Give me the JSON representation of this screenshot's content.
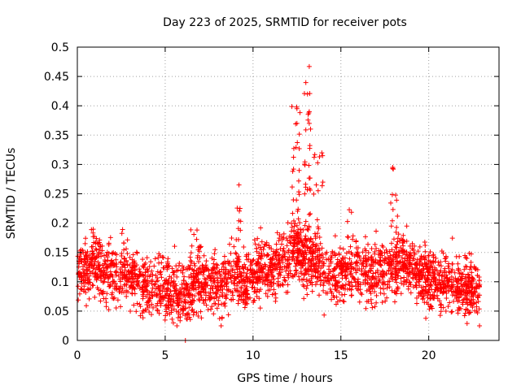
{
  "chart_data": {
    "type": "scatter",
    "title": "Day 223 of 2025, SRMTID for receiver pots",
    "xlabel": "GPS time / hours",
    "ylabel": "SRMTID / TECUs",
    "xlim": [
      0,
      24
    ],
    "ylim": [
      0,
      0.5
    ],
    "x_ticks": [
      0,
      5,
      10,
      15,
      20
    ],
    "y_ticks": [
      0,
      0.05,
      0.1,
      0.15,
      0.2,
      0.25,
      0.3,
      0.35,
      0.4,
      0.45,
      0.5
    ],
    "x_tick_labels": [
      "0",
      "5",
      "10",
      "15",
      "20"
    ],
    "y_tick_labels": [
      "0",
      "0.05",
      "0.1",
      "0.15",
      "0.2",
      "0.25",
      "0.3",
      "0.35",
      "0.4",
      "0.45",
      "0.5"
    ],
    "grid": true,
    "marker": "+",
    "color": "#ff0000",
    "baseline": [
      [
        0.0,
        0.12
      ],
      [
        0.5,
        0.12
      ],
      [
        1.0,
        0.13
      ],
      [
        1.5,
        0.12
      ],
      [
        2.0,
        0.11
      ],
      [
        2.5,
        0.1
      ],
      [
        3.0,
        0.11
      ],
      [
        3.5,
        0.1
      ],
      [
        4.0,
        0.09
      ],
      [
        4.5,
        0.09
      ],
      [
        5.0,
        0.09
      ],
      [
        5.5,
        0.08
      ],
      [
        6.0,
        0.08
      ],
      [
        6.5,
        0.09
      ],
      [
        7.0,
        0.1
      ],
      [
        7.5,
        0.1
      ],
      [
        8.0,
        0.09
      ],
      [
        8.5,
        0.1
      ],
      [
        9.0,
        0.11
      ],
      [
        9.5,
        0.1
      ],
      [
        10.0,
        0.11
      ],
      [
        10.5,
        0.12
      ],
      [
        11.0,
        0.12
      ],
      [
        11.5,
        0.13
      ],
      [
        12.0,
        0.14
      ],
      [
        12.5,
        0.15
      ],
      [
        13.0,
        0.14
      ],
      [
        13.5,
        0.13
      ],
      [
        14.0,
        0.12
      ],
      [
        14.5,
        0.11
      ],
      [
        15.0,
        0.11
      ],
      [
        15.5,
        0.12
      ],
      [
        16.0,
        0.12
      ],
      [
        16.5,
        0.12
      ],
      [
        17.0,
        0.11
      ],
      [
        17.5,
        0.12
      ],
      [
        18.0,
        0.13
      ],
      [
        18.5,
        0.13
      ],
      [
        19.0,
        0.12
      ],
      [
        19.5,
        0.11
      ],
      [
        20.0,
        0.1
      ],
      [
        20.5,
        0.1
      ],
      [
        21.0,
        0.1
      ],
      [
        21.5,
        0.09
      ],
      [
        22.0,
        0.09
      ],
      [
        22.5,
        0.09
      ],
      [
        22.8,
        0.08
      ]
    ],
    "bursts": [
      {
        "x": [
          0.7,
          1.0
        ],
        "peak": 0.2,
        "count": 12
      },
      {
        "x": [
          2.4,
          2.7
        ],
        "peak": 0.19,
        "count": 10
      },
      {
        "x": [
          6.4,
          6.9
        ],
        "peak": 0.2,
        "count": 16
      },
      {
        "x": [
          9.0,
          9.3
        ],
        "peak": 0.26,
        "count": 14
      },
      {
        "x": [
          10.4,
          10.7
        ],
        "peak": 0.2,
        "count": 8
      },
      {
        "x": [
          12.2,
          12.7
        ],
        "peak": 0.4,
        "count": 40
      },
      {
        "x": [
          12.9,
          13.3
        ],
        "peak": 0.47,
        "count": 40
      },
      {
        "x": [
          13.4,
          14.0
        ],
        "peak": 0.33,
        "count": 26
      },
      {
        "x": [
          15.3,
          15.7
        ],
        "peak": 0.24,
        "count": 14
      },
      {
        "x": [
          17.8,
          18.3
        ],
        "peak": 0.3,
        "count": 22
      },
      {
        "x": [
          18.4,
          18.8
        ],
        "peak": 0.21,
        "count": 10
      },
      {
        "x": [
          22.2,
          22.5
        ],
        "peak": 0.15,
        "count": 8
      }
    ],
    "outliers": [
      [
        13.2,
        0.467
      ],
      [
        13.1,
        0.42
      ],
      [
        12.5,
        0.395
      ],
      [
        13.2,
        0.39
      ],
      [
        12.5,
        0.37
      ],
      [
        13.2,
        0.37
      ],
      [
        17.95,
        0.295
      ],
      [
        9.2,
        0.265
      ],
      [
        6.15,
        0.0
      ]
    ],
    "point_count": 2700
  }
}
